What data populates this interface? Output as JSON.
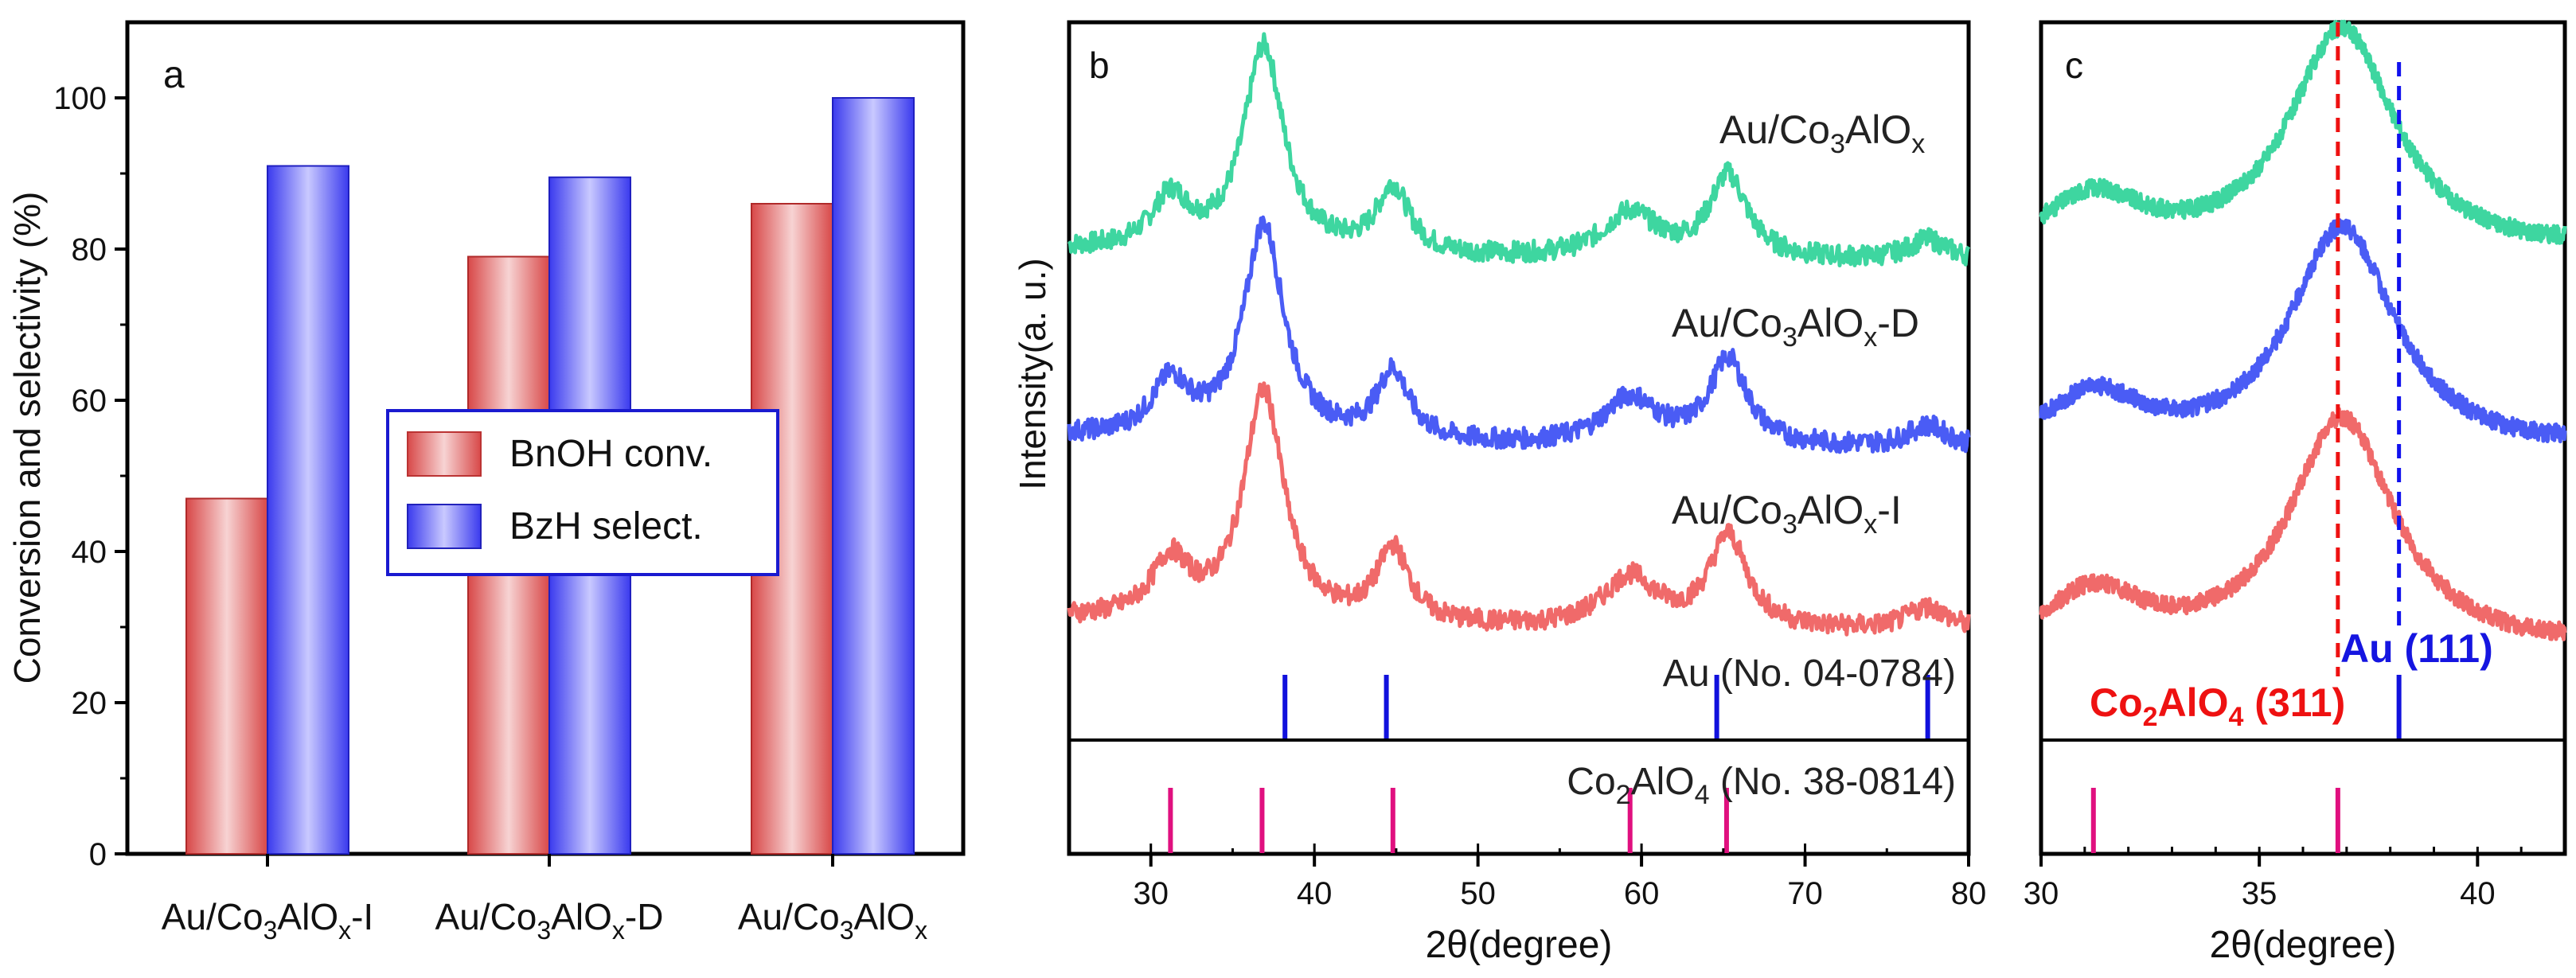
{
  "colors": {
    "bnoh": "#e36b6b",
    "bzh": "#4a4af0",
    "sample_top": "#3ed6a0",
    "sample_mid": "#4a5cf5",
    "sample_bot": "#f06a6a",
    "au_ref": "#1111dd",
    "co2alo4_ref": "#e0107f",
    "dash_red": "#ee1111",
    "dash_blue": "#1111ee"
  },
  "chart_data": [
    {
      "panel": "a",
      "type": "bar",
      "ylabel": "Conversion and selectivity (%)",
      "ylim": [
        0,
        110
      ],
      "yticks": [
        "0",
        "20",
        "40",
        "60",
        "80",
        "100"
      ],
      "categories": [
        "Au/Co3AlOx-I",
        "Au/Co3AlOx-D",
        "Au/Co3AlOx"
      ],
      "category_labels": [
        {
          "pre": "Au/Co",
          "sub": "3",
          "mid": "AlO",
          "sub2": "x",
          "post": "-I"
        },
        {
          "pre": "Au/Co",
          "sub": "3",
          "mid": "AlO",
          "sub2": "x",
          "post": "-D"
        },
        {
          "pre": "Au/Co",
          "sub": "3",
          "mid": "AlO",
          "sub2": "x",
          "post": ""
        }
      ],
      "series": [
        {
          "name": "BnOH conv.",
          "values": [
            47,
            79,
            86
          ]
        },
        {
          "name": "BzH select.",
          "values": [
            91,
            89.5,
            100
          ]
        }
      ],
      "legend": [
        "BnOH conv.",
        "BzH select."
      ],
      "legend_position": "center"
    },
    {
      "panel": "b",
      "type": "line",
      "xlabel": "2θ(degree)",
      "ylabel": "Intensity(a. u.)",
      "xlim": [
        25,
        80
      ],
      "xticks": [
        "30",
        "40",
        "50",
        "60",
        "70",
        "80"
      ],
      "series": [
        {
          "name": "Au/Co3AlOx",
          "label": {
            "pre": "Au/Co",
            "sub": "3",
            "mid": "AlO",
            "sub2": "x",
            "post": ""
          }
        },
        {
          "name": "Au/Co3AlOx-D",
          "label": {
            "pre": "Au/Co",
            "sub": "3",
            "mid": "AlO",
            "sub2": "x",
            "post": "-D"
          }
        },
        {
          "name": "Au/Co3AlOx-I",
          "label": {
            "pre": "Au/Co",
            "sub": "3",
            "mid": "AlO",
            "sub2": "x",
            "post": "-I"
          }
        }
      ],
      "peaks": [
        {
          "pos": 31.2,
          "height": 0.25,
          "width": 1.4
        },
        {
          "pos": 36.9,
          "height": 1.0,
          "width": 1.5
        },
        {
          "pos": 44.8,
          "height": 0.32,
          "width": 1.2
        },
        {
          "pos": 59.3,
          "height": 0.22,
          "width": 2.0
        },
        {
          "pos": 65.3,
          "height": 0.4,
          "width": 1.4
        },
        {
          "pos": 77.5,
          "height": 0.1,
          "width": 1.5
        }
      ],
      "reference_au": {
        "label": "Au (No. 04-0784)",
        "positions": [
          38.2,
          44.4,
          64.6,
          77.5
        ]
      },
      "reference_co2alo4": {
        "label_pre": "Co",
        "label_sub": "2",
        "label_post": "AlO",
        "label_sub2": "4",
        "label_end": " (No. 38-0814)",
        "positions": [
          31.2,
          36.8,
          44.8,
          59.3,
          65.2
        ]
      }
    },
    {
      "panel": "c",
      "type": "line",
      "xlabel": "2θ(degree)",
      "xlim": [
        30,
        42
      ],
      "xticks": [
        "30",
        "35",
        "40"
      ],
      "dashed_lines": [
        36.8,
        38.2
      ],
      "annotation_au": {
        "text": "Au (111)"
      },
      "annotation_co": {
        "pre": "Co",
        "sub": "2",
        "mid": "AlO",
        "sub2": "4",
        "post": " (311)"
      },
      "reference_au_positions": [
        38.2
      ],
      "reference_co2alo4_positions": [
        31.2,
        36.8
      ]
    }
  ]
}
